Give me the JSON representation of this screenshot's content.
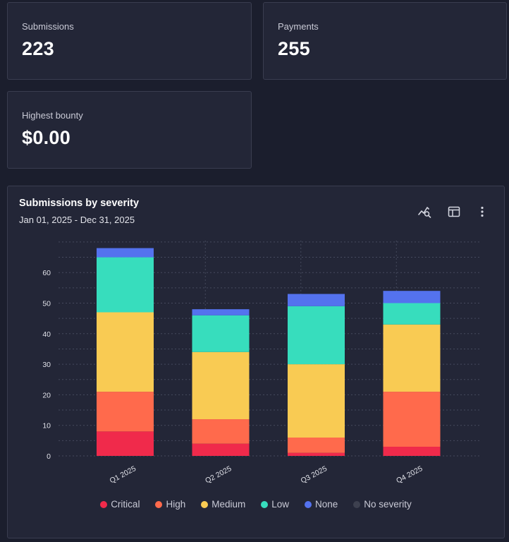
{
  "stats": {
    "submissions": {
      "label": "Submissions",
      "value": "223"
    },
    "payments": {
      "label": "Payments",
      "value": "255"
    },
    "highest_bounty": {
      "label": "Highest bounty",
      "value": "$0.00"
    }
  },
  "chart_card": {
    "title": "Submissions by severity",
    "date_range": "Jan 01, 2025 - Dec 31, 2025",
    "tools": [
      "analytics-search-icon",
      "table-icon",
      "more-vertical-icon"
    ]
  },
  "chart_data": {
    "type": "bar",
    "stacked": true,
    "title": "Submissions by severity",
    "subtitle": "Jan 01, 2025 - Dec 31, 2025",
    "categories": [
      "Q1 2025",
      "Q2 2025",
      "Q3 2025",
      "Q4 2025"
    ],
    "series": [
      {
        "name": "Critical",
        "color": "#f02a4b",
        "values": [
          8,
          4,
          1,
          3
        ]
      },
      {
        "name": "High",
        "color": "#ff6a4c",
        "values": [
          13,
          8,
          5,
          18
        ]
      },
      {
        "name": "Medium",
        "color": "#f9cb53",
        "values": [
          26,
          22,
          24,
          22
        ]
      },
      {
        "name": "Low",
        "color": "#37ddbd",
        "values": [
          18,
          12,
          19,
          7
        ]
      },
      {
        "name": "None",
        "color": "#5472ee",
        "values": [
          3,
          2,
          4,
          4
        ]
      },
      {
        "name": "No severity",
        "color": "#3d404f",
        "values": [
          0,
          0,
          0,
          0
        ]
      }
    ],
    "y_ticks": [
      0,
      10,
      20,
      30,
      40,
      50,
      60
    ],
    "ylim": [
      0,
      70
    ],
    "grid": true,
    "legend_position": "bottom"
  }
}
